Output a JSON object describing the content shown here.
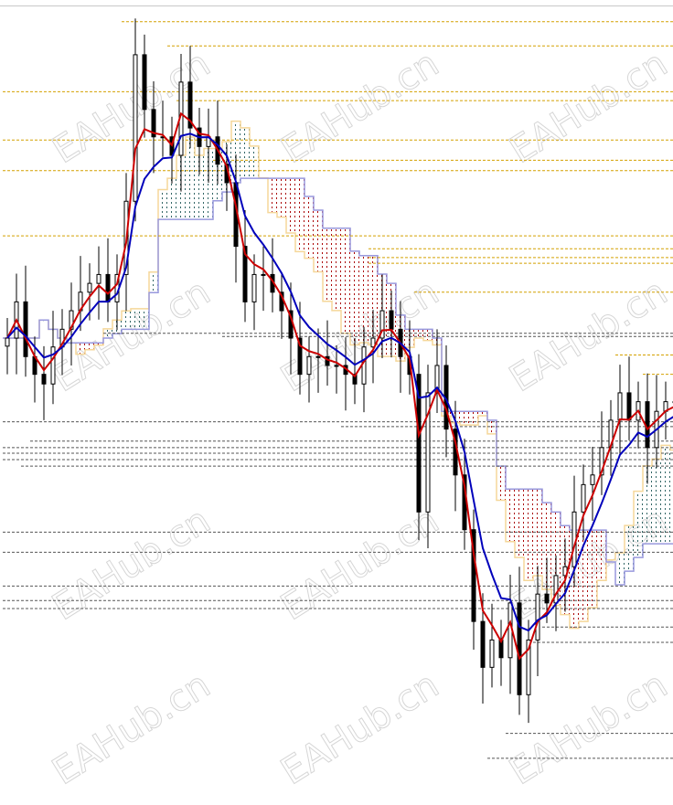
{
  "chart_data": {
    "type": "candlestick",
    "title": "",
    "xlabel": "",
    "ylabel": "",
    "ylim": [
      0,
      100
    ],
    "grid": false,
    "colors": {
      "bull_body": "#ffffff",
      "bear_body": "#000000",
      "wick": "#000000",
      "fast_ma": "#cc0000",
      "slow_ma": "#0000bb",
      "cloud_bear": "#aa0000",
      "cloud_bull": "#336666",
      "span_a": "#f5d79a",
      "span_b": "#9999dd",
      "resistance": "#d4a000",
      "support": "#555555"
    },
    "close": [
      58,
      62.5,
      55.7,
      53.5,
      52.3,
      56.9,
      59.1,
      61.4,
      63.7,
      64.8,
      65.9,
      62.5,
      65.9,
      75,
      93.2,
      86.4,
      83,
      83,
      80.7,
      89.8,
      84.1,
      81.8,
      83,
      79.6,
      77.3,
      69.4,
      62.5,
      65.9,
      65.9,
      63.7,
      61.4,
      58,
      53.5,
      55.7,
      55.7,
      54.6,
      54.6,
      53.5,
      52.3,
      56.9,
      58,
      61.4,
      59.1,
      55.7,
      53.5,
      36.4,
      51.2,
      54.6,
      46.7,
      41,
      34.2,
      22.8,
      17.1,
      20.5,
      18.3,
      25.1,
      13.7,
      20.5,
      26.2,
      25.1,
      28.5,
      29.6,
      36.4,
      39.8,
      41,
      44.4,
      47.8,
      51.2,
      47.8,
      50.1,
      44.4,
      48.9,
      50.1,
      50.1,
      51.2
    ],
    "resistance_levels": [
      {
        "price": 97.3,
        "from": 13
      },
      {
        "price": 94.3,
        "from": 18
      },
      {
        "price": 88.6,
        "from": 0
      },
      {
        "price": 87.5,
        "from": 19
      },
      {
        "price": 82.6,
        "from": 0
      },
      {
        "price": 80.1,
        "from": 23
      },
      {
        "price": 78.8,
        "from": 0
      },
      {
        "price": 70.7,
        "from": 0
      },
      {
        "price": 69.1,
        "from": 40
      },
      {
        "price": 68,
        "from": 40
      },
      {
        "price": 67.3,
        "from": 40
      },
      {
        "price": 63.7,
        "from": 45
      },
      {
        "price": 55.9,
        "from": 67
      },
      {
        "price": 53.5,
        "from": 70
      }
    ],
    "support_levels": [
      {
        "price": 58.6,
        "from": 11
      },
      {
        "price": 58.2,
        "from": 24
      },
      {
        "price": 47.6,
        "from": 0
      },
      {
        "price": 47,
        "from": 37
      },
      {
        "price": 45.2,
        "from": 3
      },
      {
        "price": 44.4,
        "from": 0
      },
      {
        "price": 43.7,
        "from": 0
      },
      {
        "price": 42.9,
        "from": 0
      },
      {
        "price": 42.1,
        "from": 2
      },
      {
        "price": 33.9,
        "from": 0
      },
      {
        "price": 31.4,
        "from": 0
      },
      {
        "price": 27.2,
        "from": 0
      },
      {
        "price": 25.4,
        "from": 0
      },
      {
        "price": 24.4,
        "from": 0
      },
      {
        "price": 22.1,
        "from": 59
      },
      {
        "price": 20.2,
        "from": 58
      },
      {
        "price": 8.9,
        "from": 55
      },
      {
        "price": 5.8,
        "from": 53
      }
    ]
  },
  "watermark": "EAHub.cn"
}
